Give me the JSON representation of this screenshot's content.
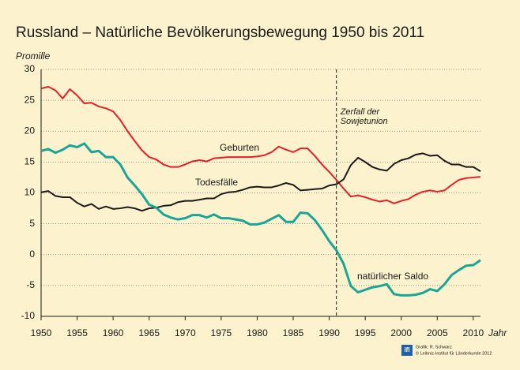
{
  "chart_data": {
    "type": "line",
    "title": "Russland – Natürliche Bevölkerungsbewegung 1950 bis 2011",
    "y_label": "Promille",
    "x_label": "Jahr",
    "x": [
      1950,
      1951,
      1952,
      1953,
      1954,
      1955,
      1956,
      1957,
      1958,
      1959,
      1960,
      1961,
      1962,
      1963,
      1964,
      1965,
      1966,
      1967,
      1968,
      1969,
      1970,
      1971,
      1972,
      1973,
      1974,
      1975,
      1976,
      1977,
      1978,
      1979,
      1980,
      1981,
      1982,
      1983,
      1984,
      1985,
      1986,
      1987,
      1988,
      1989,
      1990,
      1991,
      1992,
      1993,
      1994,
      1995,
      1996,
      1997,
      1998,
      1999,
      2000,
      2001,
      2002,
      2003,
      2004,
      2005,
      2006,
      2007,
      2008,
      2009,
      2010,
      2011
    ],
    "series": [
      {
        "name": "Geburten",
        "color": "#e3202a",
        "values": [
          26.9,
          27.2,
          26.6,
          25.3,
          26.8,
          25.8,
          24.5,
          24.6,
          24.0,
          23.7,
          23.2,
          21.8,
          20.0,
          18.4,
          16.9,
          15.8,
          15.4,
          14.6,
          14.2,
          14.2,
          14.6,
          15.1,
          15.3,
          15.1,
          15.6,
          15.7,
          15.8,
          15.8,
          15.8,
          15.8,
          15.9,
          16.1,
          16.6,
          17.5,
          17.0,
          16.6,
          17.2,
          17.2,
          16.0,
          14.6,
          13.4,
          12.1,
          10.7,
          9.4,
          9.6,
          9.3,
          8.9,
          8.6,
          8.8,
          8.3,
          8.7,
          9.0,
          9.7,
          10.2,
          10.4,
          10.2,
          10.4,
          11.3,
          12.1,
          12.4,
          12.5,
          12.6
        ]
      },
      {
        "name": "Todesfälle",
        "color": "#1a1a1a",
        "values": [
          10.1,
          10.3,
          9.5,
          9.3,
          9.3,
          8.4,
          7.8,
          8.2,
          7.4,
          7.8,
          7.4,
          7.5,
          7.7,
          7.5,
          7.1,
          7.5,
          7.6,
          7.9,
          8.0,
          8.5,
          8.7,
          8.7,
          8.9,
          9.1,
          9.1,
          9.8,
          10.1,
          10.2,
          10.5,
          10.9,
          11.0,
          10.9,
          10.9,
          11.2,
          11.6,
          11.3,
          10.4,
          10.5,
          10.6,
          10.7,
          11.2,
          11.4,
          12.2,
          14.5,
          15.7,
          15.0,
          14.2,
          13.8,
          13.6,
          14.7,
          15.3,
          15.6,
          16.2,
          16.4,
          16.0,
          16.1,
          15.2,
          14.6,
          14.6,
          14.2,
          14.2,
          13.5
        ]
      },
      {
        "name": "natürlicher Saldo",
        "color": "#1aa597",
        "values": [
          16.8,
          17.1,
          16.5,
          17.0,
          17.7,
          17.4,
          18.0,
          16.6,
          16.8,
          15.8,
          15.8,
          14.6,
          12.5,
          11.2,
          9.8,
          8.1,
          7.6,
          6.5,
          6.0,
          5.7,
          5.9,
          6.4,
          6.4,
          6.0,
          6.5,
          5.9,
          5.9,
          5.7,
          5.5,
          4.9,
          4.9,
          5.2,
          5.8,
          6.4,
          5.3,
          5.3,
          6.8,
          6.7,
          5.6,
          4.0,
          2.2,
          0.7,
          -1.5,
          -5.1,
          -6.1,
          -5.7,
          -5.3,
          -5.1,
          -4.8,
          -6.4,
          -6.6,
          -6.6,
          -6.5,
          -6.2,
          -5.6,
          -5.9,
          -4.8,
          -3.3,
          -2.5,
          -1.8,
          -1.7,
          -0.9
        ]
      }
    ],
    "annotation": {
      "x": 1991,
      "lines": [
        "Zerfall der",
        "Sowjetunion"
      ]
    },
    "xlim": [
      1950,
      2011
    ],
    "xticks": [
      1950,
      1955,
      1960,
      1965,
      1970,
      1975,
      1980,
      1985,
      1990,
      1995,
      2000,
      2005,
      2010
    ],
    "ylim": [
      -10,
      30
    ],
    "yticks": [
      -10,
      -5,
      0,
      5,
      10,
      15,
      20,
      25,
      30
    ],
    "grid": true,
    "credits": {
      "logo": "ifl",
      "lines": [
        "Grafik: R. Schwarz",
        "© Leibniz-Institut für Länderkunde 2012"
      ]
    }
  }
}
